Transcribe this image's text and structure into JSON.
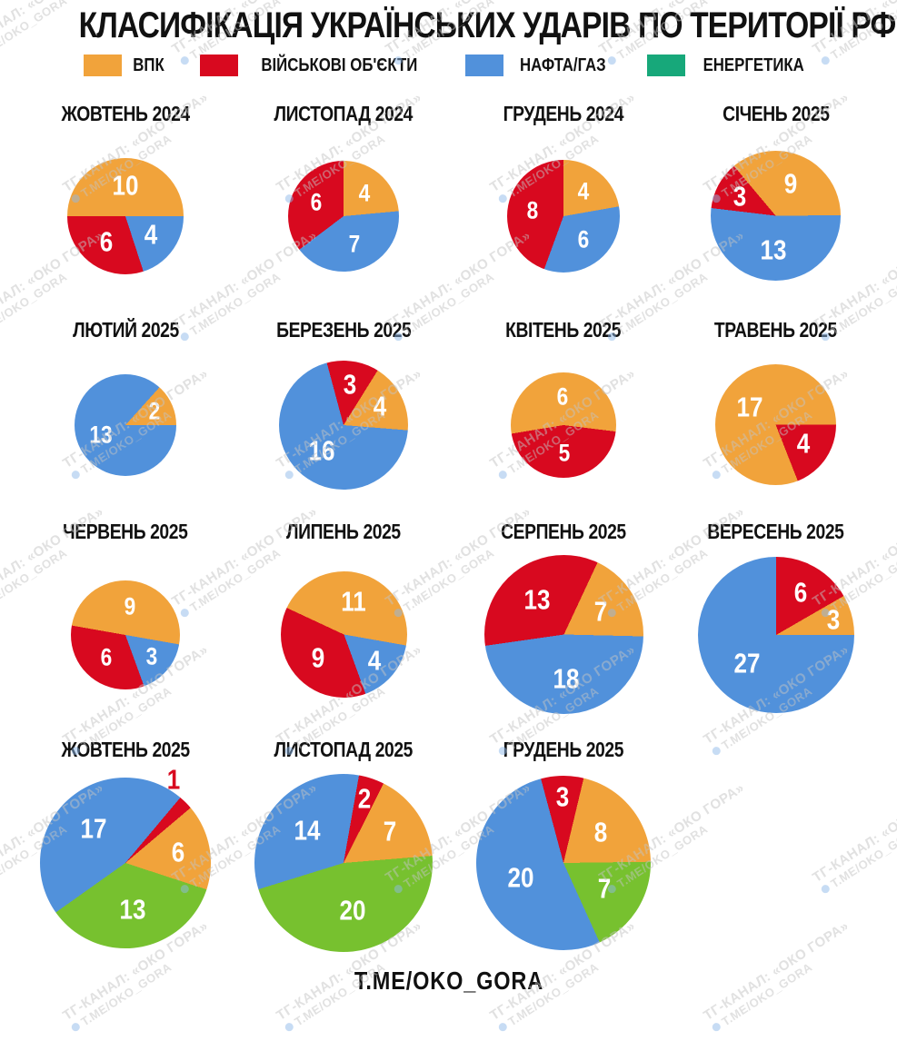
{
  "title": "КЛАСИФІКАЦІЯ УКРАЇНСЬКИХ УДАРІВ ПО ТЕРИТОРІЇ РФ:",
  "legend": {
    "items": [
      {
        "label": "ВПК",
        "color": "#F1A33B"
      },
      {
        "label": "ВІЙСЬКОВІ ОБ'ЄКТИ",
        "color": "#D8091F"
      },
      {
        "label": "НАФТА/ГАЗ",
        "color": "#5191DB"
      },
      {
        "label": "ЕНЕРГЕТИКА",
        "color": "#17A87A"
      }
    ]
  },
  "category_colors": {
    "ВПК": "#F1A33B",
    "ВІЙСЬКОВІ ОБ'ЄКТИ": "#D8091F",
    "НАФТА/ГАЗ": "#5191DB",
    "ЕНЕРГЕТИКА": "#77C12F"
  },
  "footer": "T.ME/OKO_GORA",
  "watermark": {
    "line1": "ТГ-КАНАЛ: «ОКО ГОРА»",
    "line2": "T.ME/OKO_GORA"
  },
  "chart_data": [
    {
      "type": "pie",
      "title": "ЖОВТЕНЬ 2024",
      "total": 20,
      "size": 128,
      "from_deg": 270,
      "slices": [
        {
          "category": "ВПК",
          "value": 10
        },
        {
          "category": "НАФТА/ГАЗ",
          "value": 4
        },
        {
          "category": "ВІЙСЬКОВІ ОБ'ЄКТИ",
          "value": 6
        }
      ]
    },
    {
      "type": "pie",
      "title": "ЛИСТОПАД 2024",
      "total": 17,
      "size": 122,
      "from_deg": 0,
      "slices": [
        {
          "category": "ВПК",
          "value": 4
        },
        {
          "category": "НАФТА/ГАЗ",
          "value": 7
        },
        {
          "category": "ВІЙСЬКОВІ ОБ'ЄКТИ",
          "value": 6
        }
      ]
    },
    {
      "type": "pie",
      "title": "ГРУДЕНЬ 2024",
      "total": 18,
      "size": 124,
      "from_deg": 0,
      "slices": [
        {
          "category": "ВПК",
          "value": 4
        },
        {
          "category": "НАФТА/ГАЗ",
          "value": 6
        },
        {
          "category": "ВІЙСЬКОВІ ОБ'ЄКТИ",
          "value": 8
        }
      ]
    },
    {
      "type": "pie",
      "title": "СІЧЕНЬ 2025",
      "total": 25,
      "size": 143,
      "from_deg": -40,
      "slices": [
        {
          "category": "ВПК",
          "value": 9
        },
        {
          "category": "НАФТА/ГАЗ",
          "value": 13
        },
        {
          "category": "ВІЙСЬКОВІ ОБ'ЄКТИ",
          "value": 3
        }
      ]
    },
    {
      "type": "pie",
      "title": "ЛЮТИЙ 2025",
      "total": 15,
      "size": 112,
      "from_deg": 42,
      "slices": [
        {
          "category": "ВПК",
          "value": 2
        },
        {
          "category": "НАФТА/ГАЗ",
          "value": 13
        }
      ]
    },
    {
      "type": "pie",
      "title": "БЕРЕЗЕНЬ 2025",
      "total": 23,
      "size": 142,
      "from_deg": -15,
      "slices": [
        {
          "category": "ВІЙСЬКОВІ ОБ'ЄКТИ",
          "value": 3
        },
        {
          "category": "ВПК",
          "value": 4
        },
        {
          "category": "НАФТА/ГАЗ",
          "value": 16
        }
      ]
    },
    {
      "type": "pie",
      "title": "КВІТЕНЬ 2025",
      "total": 11,
      "size": 116,
      "from_deg": 97,
      "slices": [
        {
          "category": "ВІЙСЬКОВІ ОБ'ЄКТИ",
          "value": 5
        },
        {
          "category": "ВПК",
          "value": 6
        }
      ]
    },
    {
      "type": "pie",
      "title": "ТРАВЕНЬ 2025",
      "total": 21,
      "size": 133,
      "from_deg": 90,
      "slices": [
        {
          "category": "ВІЙСЬКОВІ ОБ'ЄКТИ",
          "value": 4
        },
        {
          "category": "ВПК",
          "value": 17
        }
      ]
    },
    {
      "type": "pie",
      "title": "ЧЕРВЕНЬ 2025",
      "total": 18,
      "size": 120,
      "from_deg": 280,
      "slices": [
        {
          "category": "ВПК",
          "value": 9
        },
        {
          "category": "НАФТА/ГАЗ",
          "value": 3
        },
        {
          "category": "ВІЙСЬКОВІ ОБ'ЄКТИ",
          "value": 6
        }
      ]
    },
    {
      "type": "pie",
      "title": "ЛИПЕНЬ 2025",
      "total": 24,
      "size": 139,
      "from_deg": 295,
      "slices": [
        {
          "category": "ВПК",
          "value": 11
        },
        {
          "category": "НАФТА/ГАЗ",
          "value": 4
        },
        {
          "category": "ВІЙСЬКОВІ ОБ'ЄКТИ",
          "value": 9
        }
      ]
    },
    {
      "type": "pie",
      "title": "СЕРПЕНЬ 2025",
      "total": 38,
      "size": 175,
      "from_deg": 25,
      "slices": [
        {
          "category": "ВПК",
          "value": 7
        },
        {
          "category": "НАФТА/ГАЗ",
          "value": 18
        },
        {
          "category": "ВІЙСЬКОВІ ОБ'ЄКТИ",
          "value": 13
        }
      ]
    },
    {
      "type": "pie",
      "title": "ВЕРЕСЕНЬ 2025",
      "total": 36,
      "size": 172,
      "from_deg": 0,
      "slices": [
        {
          "category": "ВІЙСЬКОВІ ОБ'ЄКТИ",
          "value": 6
        },
        {
          "category": "ВПК",
          "value": 3
        },
        {
          "category": "НАФТА/ГАЗ",
          "value": 27
        }
      ]
    },
    {
      "type": "pie",
      "title": "ЖОВТЕНЬ 2025",
      "total": 37,
      "size": 188,
      "from_deg": 40,
      "slices": [
        {
          "category": "ВІЙСЬКОВІ ОБ'ЄКТИ",
          "value": 1,
          "label_angle_deg": 30,
          "label_r_factor": 1.12,
          "label_color": "#D8091F"
        },
        {
          "category": "ВПК",
          "value": 6
        },
        {
          "category": "ЕНЕРГЕТИКА",
          "value": 13
        },
        {
          "category": "НАФТА/ГАЗ",
          "value": 17
        }
      ]
    },
    {
      "type": "pie",
      "title": "ЛИСТОПАД 2025",
      "total": 43,
      "size": 196,
      "from_deg": 10,
      "slices": [
        {
          "category": "ВІЙСЬКОВІ ОБ'ЄКТИ",
          "value": 2
        },
        {
          "category": "ВПК",
          "value": 7
        },
        {
          "category": "ЕНЕРГЕТИКА",
          "value": 20
        },
        {
          "category": "НАФТА/ГАЗ",
          "value": 14
        }
      ]
    },
    {
      "type": "pie",
      "title": "ГРУДЕНЬ 2025",
      "total": 38,
      "size": 192,
      "from_deg": -15,
      "slices": [
        {
          "category": "ВІЙСЬКОВІ ОБ'ЄКТИ",
          "value": 3
        },
        {
          "category": "ВПК",
          "value": 8
        },
        {
          "category": "ЕНЕРГЕТИКА",
          "value": 7
        },
        {
          "category": "НАФТА/ГАЗ",
          "value": 20
        }
      ]
    }
  ]
}
